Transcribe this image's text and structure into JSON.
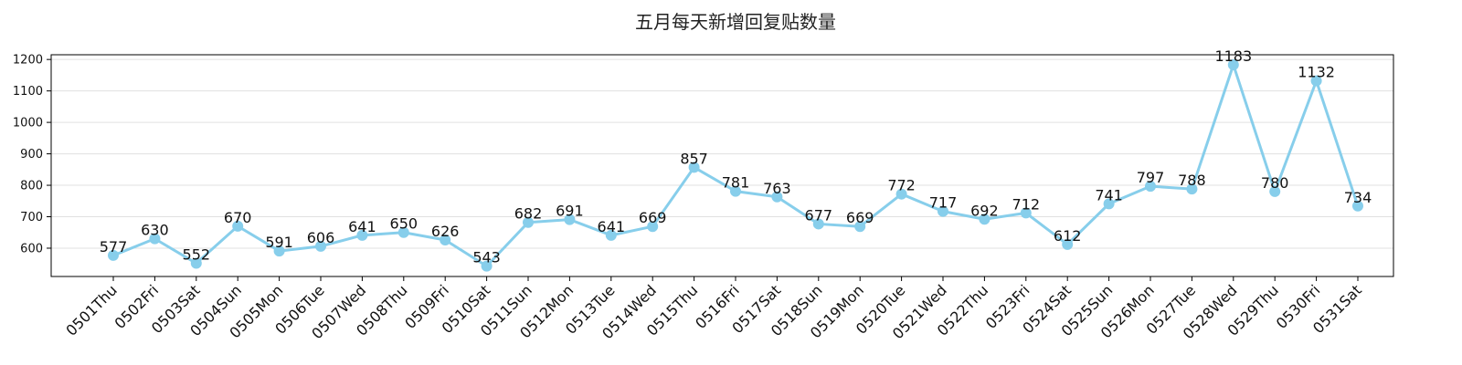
{
  "chart_data": {
    "type": "line",
    "title": "五月每天新增回复贴数量",
    "xlabel": "",
    "ylabel": "",
    "categories": [
      "0501Thu",
      "0502Fri",
      "0503Sat",
      "0504Sun",
      "0505Mon",
      "0506Tue",
      "0507Wed",
      "0508Thu",
      "0509Fri",
      "0510Sat",
      "0511Sun",
      "0512Mon",
      "0513Tue",
      "0514Wed",
      "0515Thu",
      "0516Fri",
      "0517Sat",
      "0518Sun",
      "0519Mon",
      "0520Tue",
      "0521Wed",
      "0522Thu",
      "0523Fri",
      "0524Sat",
      "0525Sun",
      "0526Mon",
      "0527Tue",
      "0528Wed",
      "0529Thu",
      "0530Fri",
      "0531Sat"
    ],
    "series": [
      {
        "values": [
          577,
          630,
          552,
          670,
          591,
          606,
          641,
          650,
          626,
          543,
          682,
          691,
          641,
          669,
          857,
          781,
          763,
          677,
          669,
          772,
          717,
          692,
          712,
          612,
          741,
          797,
          788,
          1183,
          780,
          1132,
          734
        ],
        "color": "#87ceeb"
      }
    ],
    "ylim": [
      510,
      1215
    ],
    "yticks": [
      600,
      700,
      800,
      900,
      1000,
      1100,
      1200
    ],
    "grid": "horizontal",
    "legend": "none",
    "data_labels": true,
    "marker": "circle"
  }
}
